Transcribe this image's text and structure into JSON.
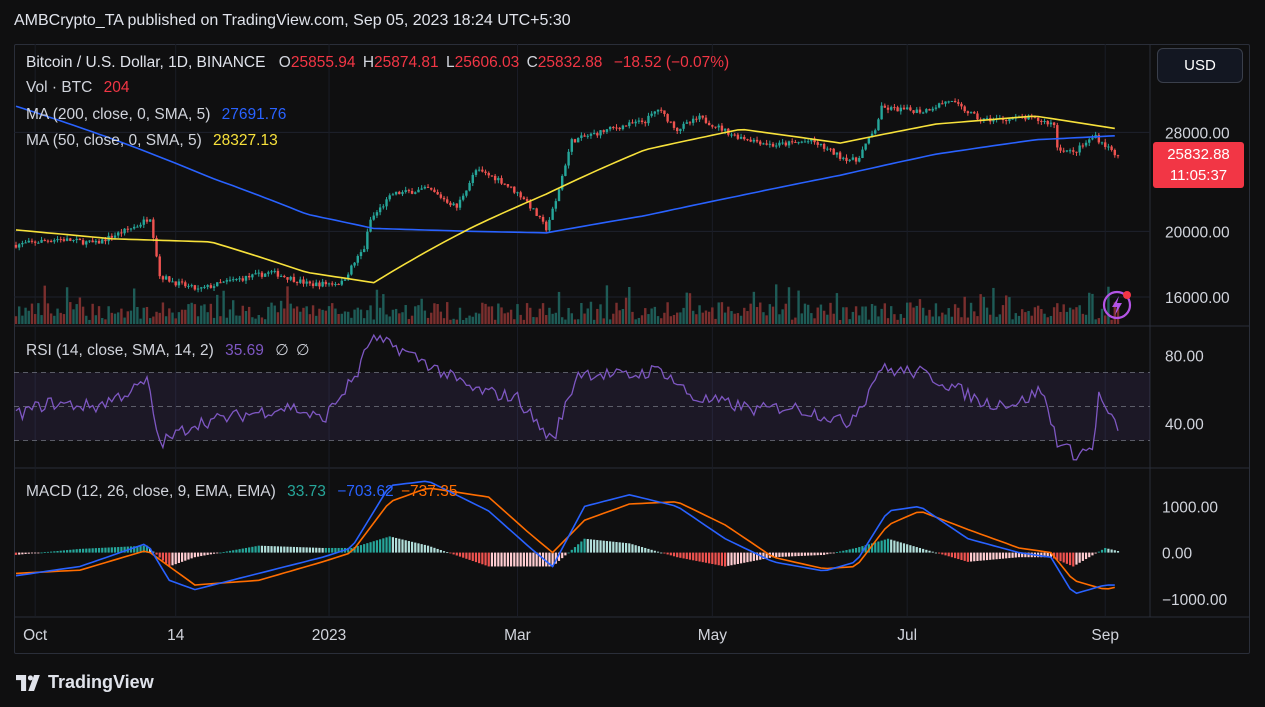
{
  "header": {
    "publisher_line": "AMBCrypto_TA published on TradingView.com, Sep 05, 2023 18:24 UTC+5:30"
  },
  "currency_button": "USD",
  "main_legend": {
    "symbol": "Bitcoin / U.S. Dollar, 1D, BINANCE",
    "open_label": "O",
    "open": "25855.94",
    "high_label": "H",
    "high": "25874.81",
    "low_label": "L",
    "low": "25606.03",
    "close_label": "C",
    "close": "25832.88",
    "change": "−18.52 (−0.07%)",
    "vol_label": "Vol · BTC",
    "vol_value": "204",
    "ma200_label": "MA (200, close, 0, SMA, 5)",
    "ma200_value": "27691.76",
    "ma50_label": "MA (50, close, 0, SMA, 5)",
    "ma50_value": "28327.13"
  },
  "price_tag": {
    "price": "25832.88",
    "countdown": "11:05:37"
  },
  "rsi_legend": {
    "label": "RSI (14, close, SMA, 14, 2)",
    "value": "35.69",
    "extra1": "∅",
    "extra2": "∅"
  },
  "macd_legend": {
    "label": "MACD (12, 26, close, 9, EMA, EMA)",
    "hist": "33.73",
    "macd": "−703.62",
    "signal": "−737.35"
  },
  "footer": {
    "brand": "TradingView"
  },
  "colors": {
    "up": "#26a69a",
    "down": "#ef5350",
    "ma200": "#2962ff",
    "ma50": "#f7e13b",
    "rsi": "#7e57c2",
    "macd": "#2962ff",
    "signal": "#ff6d00",
    "tag": "#f23645"
  },
  "chart_data": [
    {
      "type": "candlestick",
      "title": "Bitcoin / U.S. Dollar, 1D, BINANCE",
      "x_ticks": [
        "Oct",
        "14",
        "2023",
        "Mar",
        "May",
        "Jul",
        "Sep"
      ],
      "y_ticks": [
        28000,
        20000,
        16000
      ],
      "y_tick_labels": [
        "28000.00",
        "20000.00",
        "16000.00"
      ],
      "y_scale": "log",
      "ylim": [
        14800,
        33000
      ],
      "last_price": 25832.88,
      "series": [
        {
          "name": "close",
          "x": [
            "Sep 25",
            "Oct 08",
            "Oct 20",
            "Nov 02",
            "Nov 06",
            "Nov 09",
            "Nov 14",
            "Nov 21",
            "Dec 01",
            "Dec 14",
            "Dec 26",
            "Jan 05",
            "Jan 12",
            "Jan 14",
            "Jan 21",
            "Feb 01",
            "Feb 10",
            "Feb 16",
            "Feb 23",
            "Mar 03",
            "Mar 10",
            "Mar 13",
            "Mar 18",
            "Mar 31",
            "Apr 10",
            "Apr 14",
            "Apr 20",
            "Apr 27",
            "May 08",
            "May 20",
            "Jun 01",
            "Jun 10",
            "Jun 15",
            "Jun 21",
            "Jun 23",
            "Jul 06",
            "Jul 14",
            "Jul 24",
            "Aug 08",
            "Aug 16",
            "Aug 17",
            "Aug 22",
            "Aug 29",
            "Aug 30",
            "Sep 05"
          ],
          "values": [
            19100,
            19500,
            19200,
            20400,
            21000,
            17200,
            16800,
            16400,
            16900,
            17400,
            16700,
            16800,
            18900,
            20800,
            22700,
            23100,
            21700,
            24600,
            23900,
            22400,
            20200,
            22100,
            27200,
            28400,
            29100,
            30300,
            28300,
            29400,
            27700,
            26800,
            27200,
            25800,
            25400,
            28300,
            30400,
            30100,
            31200,
            29200,
            29400,
            28800,
            26600,
            26100,
            27700,
            27300,
            25833
          ]
        },
        {
          "name": "MA (200, close, 0, SMA, 5)",
          "x": [
            "Sep 25",
            "Oct 25",
            "Nov 25",
            "Dec 25",
            "Jan 15",
            "Feb 15",
            "Mar 10",
            "Apr 10",
            "May 10",
            "Jun 10",
            "Jul 10",
            "Aug 10",
            "Sep 05"
          ],
          "values": [
            30600,
            27400,
            24000,
            21200,
            20200,
            20000,
            19900,
            21100,
            22600,
            24200,
            26000,
            27300,
            27690
          ]
        },
        {
          "name": "MA (50, close, 0, SMA, 5)",
          "x": [
            "Sep 25",
            "Oct 25",
            "Nov 25",
            "Dec 25",
            "Jan 15",
            "Feb 15",
            "Mar 10",
            "Apr 10",
            "May 10",
            "Jun 10",
            "Jul 10",
            "Aug 10",
            "Sep 05"
          ],
          "values": [
            20100,
            19500,
            19300,
            17400,
            16800,
            20300,
            22700,
            26400,
            28300,
            27000,
            28800,
            29600,
            28330
          ]
        }
      ]
    },
    {
      "type": "bar",
      "title": "Vol · BTC",
      "last_value": 204
    },
    {
      "type": "line",
      "title": "RSI (14, close, SMA, 14, 2)",
      "y_ticks": [
        80,
        40
      ],
      "y_tick_labels": [
        "80.00",
        "40.00"
      ],
      "bands": [
        30,
        50,
        70
      ],
      "ylim": [
        15,
        95
      ],
      "series": [
        {
          "name": "RSI",
          "x": [
            "Sep 25",
            "Oct 05",
            "Oct 20",
            "Nov 01",
            "Nov 05",
            "Nov 09",
            "Nov 20",
            "Dec 05",
            "Dec 20",
            "Dec 30",
            "Jan 10",
            "Jan 14",
            "Jan 22",
            "Feb 01",
            "Feb 15",
            "Mar 01",
            "Mar 08",
            "Mar 12",
            "Mar 20",
            "Apr 05",
            "Apr 15",
            "Apr 25",
            "May 05",
            "May 15",
            "May 25",
            "Jun 05",
            "Jun 12",
            "Jun 18",
            "Jun 22",
            "Jul 05",
            "Jul 15",
            "Jul 25",
            "Aug 05",
            "Aug 12",
            "Aug 17",
            "Aug 22",
            "Aug 28",
            "Aug 30",
            "Sep 05"
          ],
          "values": [
            45,
            52,
            50,
            60,
            65,
            28,
            40,
            45,
            50,
            42,
            70,
            90,
            85,
            75,
            60,
            55,
            38,
            30,
            70,
            68,
            72,
            55,
            52,
            48,
            50,
            45,
            40,
            55,
            72,
            70,
            62,
            52,
            52,
            60,
            30,
            22,
            25,
            56,
            35.69
          ]
        }
      ]
    },
    {
      "type": "line",
      "title": "MACD (12, 26, close, 9, EMA, EMA)",
      "y_ticks": [
        1000,
        0,
        -1000
      ],
      "y_tick_labels": [
        "1000.00",
        "0.00",
        "−1000.00"
      ],
      "ylim": [
        -1350,
        1700
      ],
      "series": [
        {
          "name": "MACD",
          "x": [
            "Sep 25",
            "Oct 15",
            "Nov 05",
            "Nov 12",
            "Nov 20",
            "Dec 10",
            "Dec 30",
            "Jan 08",
            "Jan 20",
            "Feb 01",
            "Feb 20",
            "Mar 05",
            "Mar 12",
            "Mar 22",
            "Apr 05",
            "Apr 20",
            "May 05",
            "May 20",
            "Jun 05",
            "Jun 15",
            "Jun 25",
            "Jul 05",
            "Jul 20",
            "Aug 05",
            "Aug 15",
            "Aug 22",
            "Sep 01",
            "Sep 05"
          ],
          "values": [
            -500,
            -300,
            200,
            -600,
            -800,
            -450,
            -100,
            100,
            1450,
            1550,
            900,
            100,
            -300,
            1000,
            1250,
            1000,
            300,
            -200,
            -400,
            -200,
            900,
            1000,
            300,
            0,
            -100,
            -900,
            -700,
            -704
          ]
        },
        {
          "name": "Signal",
          "x": [
            "Sep 25",
            "Oct 15",
            "Nov 05",
            "Nov 12",
            "Nov 20",
            "Dec 10",
            "Dec 30",
            "Jan 08",
            "Jan 20",
            "Feb 01",
            "Feb 20",
            "Mar 05",
            "Mar 12",
            "Mar 22",
            "Apr 05",
            "Apr 20",
            "May 05",
            "May 20",
            "Jun 05",
            "Jun 15",
            "Jun 25",
            "Jul 05",
            "Jul 20",
            "Aug 05",
            "Aug 15",
            "Aug 22",
            "Sep 01",
            "Sep 05"
          ],
          "values": [
            -450,
            -380,
            50,
            -300,
            -700,
            -600,
            -200,
            0,
            1100,
            1400,
            1200,
            400,
            0,
            700,
            1050,
            1100,
            600,
            -100,
            -350,
            -300,
            600,
            900,
            500,
            100,
            0,
            -600,
            -800,
            -737
          ]
        },
        {
          "name": "Histogram",
          "x": [
            "Sep 25",
            "Oct 15",
            "Nov 05",
            "Nov 12",
            "Nov 20",
            "Dec 10",
            "Dec 30",
            "Jan 08",
            "Jan 20",
            "Feb 01",
            "Feb 20",
            "Mar 05",
            "Mar 12",
            "Mar 22",
            "Apr 05",
            "Apr 20",
            "May 05",
            "May 20",
            "Jun 05",
            "Jun 15",
            "Jun 25",
            "Jul 05",
            "Jul 20",
            "Aug 05",
            "Aug 15",
            "Aug 22",
            "Sep 01",
            "Sep 05"
          ],
          "values": [
            -50,
            80,
            150,
            -300,
            -100,
            150,
            100,
            100,
            350,
            150,
            -300,
            -300,
            -300,
            300,
            200,
            -100,
            -300,
            -100,
            -50,
            100,
            300,
            100,
            -200,
            -100,
            -100,
            -300,
            100,
            34
          ]
        }
      ]
    }
  ]
}
